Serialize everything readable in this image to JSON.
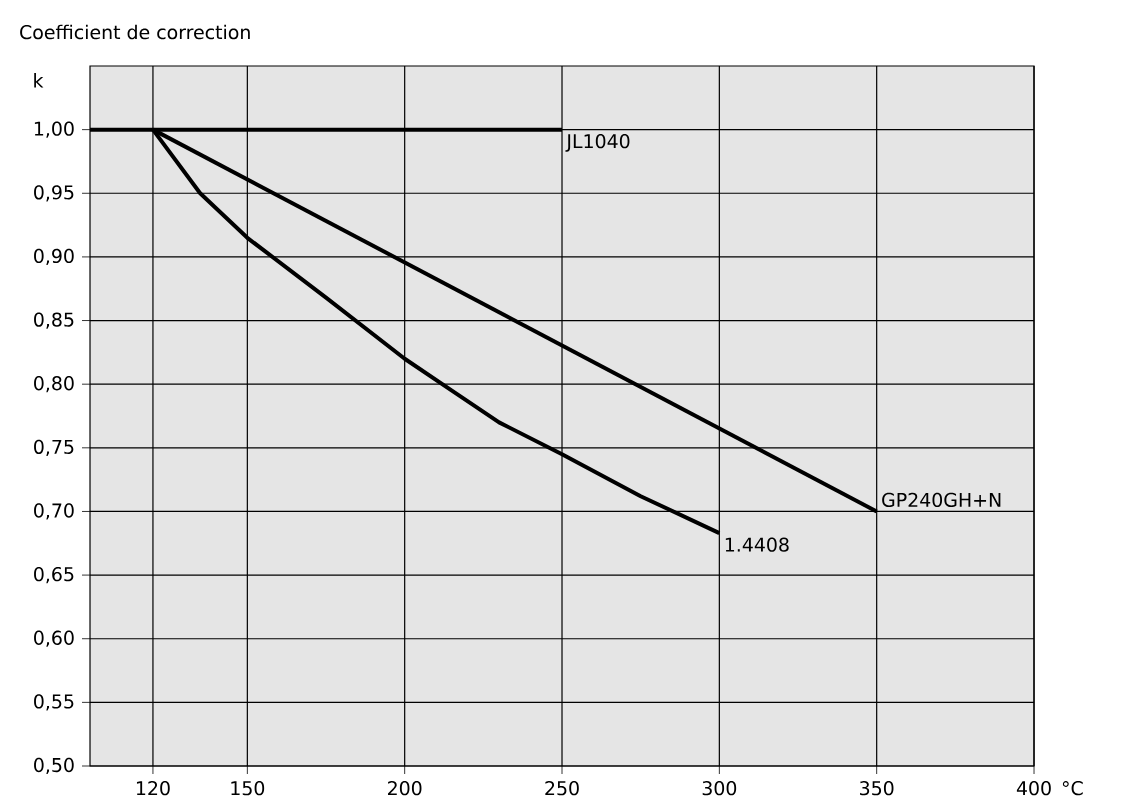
{
  "chart_data": {
    "type": "line",
    "title": "Coefficient de correction",
    "ylabel": "k",
    "xlabel": "°C",
    "series": [
      {
        "name": "JL1040",
        "color": "#000000",
        "x": [
          100,
          250
        ],
        "values": [
          1.0,
          1.0
        ]
      },
      {
        "name": "GP240GH+N",
        "color": "#000000",
        "x": [
          120,
          350
        ],
        "values": [
          1.0,
          0.7
        ]
      },
      {
        "name": "1.4408",
        "color": "#000000",
        "x": [
          120,
          135,
          150,
          175,
          200,
          215,
          230,
          250,
          275,
          300
        ],
        "values": [
          1.0,
          0.95,
          0.915,
          0.868,
          0.82,
          0.795,
          0.77,
          0.745,
          0.712,
          0.683
        ]
      }
    ],
    "xlim": [
      100,
      400
    ],
    "ylim": [
      0.5,
      1.05
    ],
    "xticks": [
      120,
      150,
      200,
      250,
      300,
      350,
      400
    ],
    "yticks": [
      {
        "value": 0.5,
        "label": "0,50"
      },
      {
        "value": 0.55,
        "label": "0,55"
      },
      {
        "value": 0.6,
        "label": "0,60"
      },
      {
        "value": 0.65,
        "label": "0,65"
      },
      {
        "value": 0.7,
        "label": "0,70"
      },
      {
        "value": 0.75,
        "label": "0,75"
      },
      {
        "value": 0.8,
        "label": "0,80"
      },
      {
        "value": 0.85,
        "label": "0,85"
      },
      {
        "value": 0.9,
        "label": "0,90"
      },
      {
        "value": 0.95,
        "label": "0,95"
      },
      {
        "value": 1.0,
        "label": "1,00"
      }
    ],
    "grid": true,
    "legend": false,
    "marker": "none",
    "line_style": "solid"
  }
}
